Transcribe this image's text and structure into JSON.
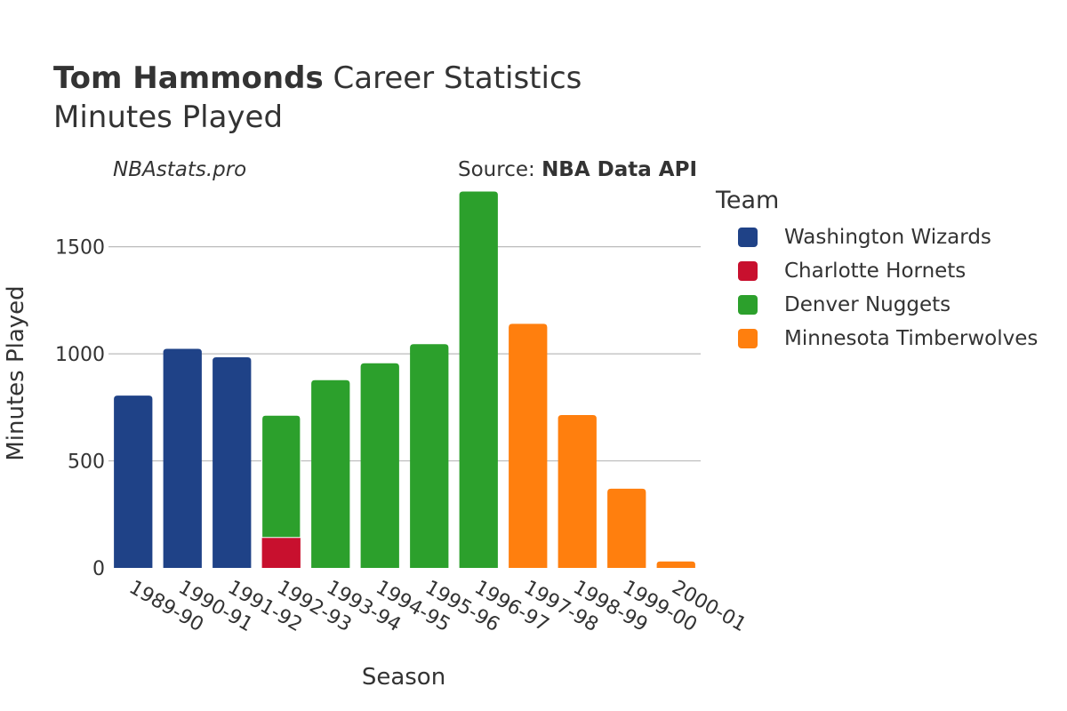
{
  "header": {
    "title_bold": "Tom Hammonds",
    "title_rest": " Career Statistics",
    "subtitle": "Minutes Played",
    "credit": "NBAstats.pro",
    "source_prefix": "Source: ",
    "source_name": "NBA Data API"
  },
  "legend": {
    "title": "Team",
    "items": [
      {
        "label": "Washington Wizards",
        "color": "#1f4287"
      },
      {
        "label": "Charlotte Hornets",
        "color": "#c8102e"
      },
      {
        "label": "Denver Nuggets",
        "color": "#2ca02c"
      },
      {
        "label": "Minnesota Timberwolves",
        "color": "#ff7f0e"
      }
    ]
  },
  "chart_data": {
    "type": "bar",
    "stacked": true,
    "title": "Tom Hammonds Career Statistics",
    "subtitle": "Minutes Played",
    "xlabel": "Season",
    "ylabel": "Minutes Played",
    "ylim": [
      0,
      1760
    ],
    "yticks": [
      0,
      500,
      1000,
      1500
    ],
    "grid": true,
    "legend_position": "right",
    "categories": [
      "1989-90",
      "1990-91",
      "1991-92",
      "1992-93",
      "1993-94",
      "1994-95",
      "1995-96",
      "1996-97",
      "1997-98",
      "1998-99",
      "1999-00",
      "2000-01"
    ],
    "series": [
      {
        "name": "Washington Wizards",
        "color": "#1f4287",
        "values": [
          805,
          1023,
          984,
          0,
          0,
          0,
          0,
          0,
          0,
          0,
          0,
          0
        ]
      },
      {
        "name": "Charlotte Hornets",
        "color": "#c8102e",
        "values": [
          0,
          0,
          0,
          142,
          0,
          0,
          0,
          0,
          0,
          0,
          0,
          0
        ]
      },
      {
        "name": "Denver Nuggets",
        "color": "#2ca02c",
        "values": [
          0,
          0,
          0,
          571,
          877,
          956,
          1045,
          1758,
          0,
          0,
          0,
          0
        ]
      },
      {
        "name": "Minnesota Timberwolves",
        "color": "#ff7f0e",
        "values": [
          0,
          0,
          0,
          0,
          0,
          0,
          0,
          0,
          1140,
          714,
          370,
          30
        ]
      }
    ]
  }
}
